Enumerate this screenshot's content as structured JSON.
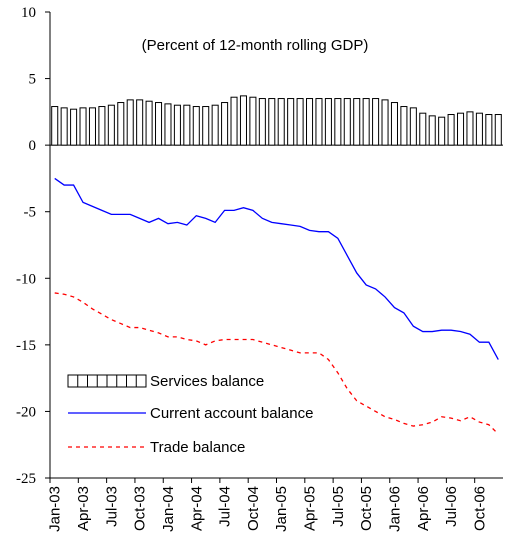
{
  "chart_data": {
    "type": "bar_line",
    "annotation": "(Percent of 12-month rolling GDP)",
    "categories": [
      "Jan-03",
      null,
      null,
      "Apr-03",
      null,
      null,
      "Jul-03",
      null,
      null,
      "Oct-03",
      null,
      null,
      "Jan-04",
      null,
      null,
      "Apr-04",
      null,
      null,
      "Jul-04",
      null,
      null,
      "Oct-04",
      null,
      null,
      "Jan-05",
      null,
      null,
      "Apr-05",
      null,
      null,
      "Jul-05",
      null,
      null,
      "Oct-05",
      null,
      null,
      "Jan-06",
      null,
      null,
      "Apr-06",
      null,
      null,
      "Jul-06",
      null,
      null,
      "Oct-06",
      null,
      null
    ],
    "series": [
      {
        "name": "Services balance",
        "kind": "bar",
        "color": "#000000",
        "values": [
          2.9,
          2.8,
          2.7,
          2.8,
          2.8,
          2.9,
          3.0,
          3.2,
          3.4,
          3.4,
          3.3,
          3.2,
          3.1,
          3.0,
          3.0,
          2.9,
          2.9,
          3.0,
          3.2,
          3.6,
          3.7,
          3.6,
          3.5,
          3.5,
          3.5,
          3.5,
          3.5,
          3.5,
          3.5,
          3.5,
          3.5,
          3.5,
          3.5,
          3.5,
          3.5,
          3.4,
          3.2,
          2.9,
          2.8,
          2.4,
          2.2,
          2.1,
          2.3,
          2.4,
          2.5,
          2.4,
          2.3,
          2.3
        ]
      },
      {
        "name": "Current account balance",
        "kind": "line",
        "color": "#0000ff",
        "values": [
          -2.5,
          -3.0,
          -3.0,
          -4.3,
          -4.6,
          -4.9,
          -5.2,
          -5.2,
          -5.2,
          -5.5,
          -5.8,
          -5.5,
          -5.9,
          -5.8,
          -6.0,
          -5.3,
          -5.5,
          -5.8,
          -4.9,
          -4.9,
          -4.7,
          -4.9,
          -5.5,
          -5.8,
          -5.9,
          -6.0,
          -6.1,
          -6.4,
          -6.5,
          -6.5,
          -7.0,
          -8.3,
          -9.6,
          -10.5,
          -10.8,
          -11.4,
          -12.2,
          -12.6,
          -13.6,
          -14.0,
          -14.0,
          -13.9,
          -13.9,
          -14.0,
          -14.2,
          -14.8,
          -14.8,
          -16.1
        ]
      },
      {
        "name": "Trade balance",
        "kind": "dashed-line",
        "color": "#ff0000",
        "values": [
          -11.1,
          -11.2,
          -11.4,
          -11.8,
          -12.3,
          -12.7,
          -13.1,
          -13.4,
          -13.7,
          -13.7,
          -13.9,
          -14.1,
          -14.4,
          -14.4,
          -14.6,
          -14.7,
          -15.0,
          -14.7,
          -14.6,
          -14.6,
          -14.6,
          -14.6,
          -14.8,
          -15.0,
          -15.2,
          -15.4,
          -15.6,
          -15.6,
          -15.6,
          -16.1,
          -17.1,
          -18.3,
          -19.2,
          -19.6,
          -20.0,
          -20.4,
          -20.6,
          -20.9,
          -21.1,
          -21.0,
          -20.8,
          -20.4,
          -20.5,
          -20.7,
          -20.4,
          -20.8,
          -21.0,
          -21.7
        ]
      }
    ],
    "ylim": [
      -25,
      10
    ],
    "yticks": [
      10,
      5,
      0,
      -5,
      -10,
      -15,
      -20,
      -25
    ]
  }
}
